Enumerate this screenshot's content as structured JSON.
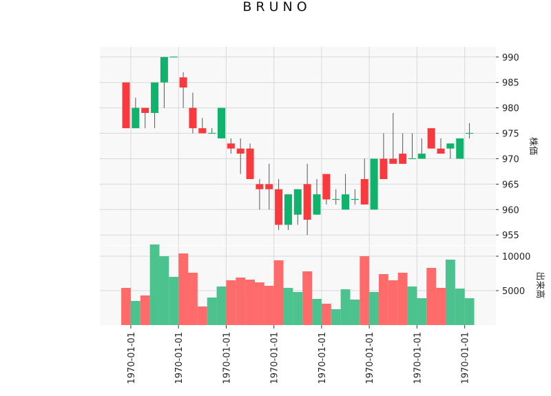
{
  "chart_data": {
    "type": "candlestick",
    "title": "BRUNO",
    "colors": {
      "up": "#0fb36b",
      "down": "#f83a3f",
      "volume_up": "#4cc28e",
      "volume_down": "#ff6b6b",
      "wick": "#555555",
      "panel_bg": "#f8f8f8",
      "grid": "#d8d8d8"
    },
    "price_axis": {
      "label": "株価",
      "ylim": [
        953,
        992
      ],
      "ticks": [
        955,
        960,
        965,
        970,
        975,
        980,
        985,
        990
      ],
      "tick_labels": [
        "955",
        "960",
        "965",
        "970",
        "975",
        "980",
        "985",
        "990"
      ]
    },
    "volume_axis": {
      "label": "出来高",
      "ylim": [
        0,
        11500
      ],
      "ticks": [
        5000,
        10000
      ],
      "tick_labels": [
        "5000",
        "10000"
      ]
    },
    "x_tick_labels": [
      "1970-01-01",
      "1970-01-01",
      "1970-01-01",
      "1970-01-01",
      "1970-01-01",
      "1970-01-01",
      "1970-01-01",
      "1970-01-01"
    ],
    "x_tick_positions": [
      0.5,
      5.5,
      10.5,
      15.5,
      20.5,
      25.5,
      30.5,
      35.5
    ],
    "grid": true,
    "candles": [
      {
        "open": 985,
        "high": 985,
        "low": 976,
        "close": 976,
        "volume": 5400
      },
      {
        "open": 976,
        "high": 982,
        "low": 976,
        "close": 980,
        "volume": 3500
      },
      {
        "open": 980,
        "high": 980,
        "low": 976,
        "close": 979,
        "volume": 4300
      },
      {
        "open": 979,
        "high": 985,
        "low": 976,
        "close": 985,
        "volume": 11700
      },
      {
        "open": 985,
        "high": 990,
        "low": 980,
        "close": 990,
        "volume": 10000
      },
      {
        "open": 990,
        "high": 990,
        "low": 990,
        "close": 990,
        "volume": 7000
      },
      {
        "open": 986,
        "high": 987,
        "low": 980,
        "close": 984,
        "volume": 10400
      },
      {
        "open": 980,
        "high": 983,
        "low": 975,
        "close": 976,
        "volume": 7600
      },
      {
        "open": 976,
        "high": 978,
        "low": 975,
        "close": 975,
        "volume": 2700
      },
      {
        "open": 975,
        "high": 976,
        "low": 975,
        "close": 975,
        "volume": 4000
      },
      {
        "open": 974,
        "high": 980,
        "low": 974,
        "close": 980,
        "volume": 5600
      },
      {
        "open": 973,
        "high": 974,
        "low": 971,
        "close": 972,
        "volume": 6500
      },
      {
        "open": 972,
        "high": 974,
        "low": 967,
        "close": 971,
        "volume": 6900
      },
      {
        "open": 972,
        "high": 973,
        "low": 966,
        "close": 966,
        "volume": 6600
      },
      {
        "open": 965,
        "high": 966,
        "low": 960,
        "close": 964,
        "volume": 6200
      },
      {
        "open": 965,
        "high": 969,
        "low": 960,
        "close": 964,
        "volume": 5700
      },
      {
        "open": 964,
        "high": 966,
        "low": 956,
        "close": 957,
        "volume": 9400
      },
      {
        "open": 957,
        "high": 963,
        "low": 956,
        "close": 963,
        "volume": 5400
      },
      {
        "open": 959,
        "high": 964,
        "low": 957,
        "close": 964,
        "volume": 4800
      },
      {
        "open": 965,
        "high": 969,
        "low": 955,
        "close": 958,
        "volume": 7800
      },
      {
        "open": 959,
        "high": 966,
        "low": 959,
        "close": 963,
        "volume": 3800
      },
      {
        "open": 967,
        "high": 967,
        "low": 961,
        "close": 962,
        "volume": 3100
      },
      {
        "open": 962,
        "high": 964,
        "low": 961,
        "close": 962,
        "volume": 2300
      },
      {
        "open": 960,
        "high": 967,
        "low": 960,
        "close": 963,
        "volume": 5200
      },
      {
        "open": 962,
        "high": 964,
        "low": 961,
        "close": 962,
        "volume": 3700
      },
      {
        "open": 966,
        "high": 970,
        "low": 961,
        "close": 961,
        "volume": 10000
      },
      {
        "open": 960,
        "high": 970,
        "low": 960,
        "close": 970,
        "volume": 4800
      },
      {
        "open": 970,
        "high": 975,
        "low": 966,
        "close": 966,
        "volume": 7400
      },
      {
        "open": 970,
        "high": 979,
        "low": 969,
        "close": 969,
        "volume": 6500
      },
      {
        "open": 971,
        "high": 975,
        "low": 969,
        "close": 969,
        "volume": 7600
      },
      {
        "open": 970,
        "high": 975,
        "low": 970,
        "close": 970,
        "volume": 5600
      },
      {
        "open": 970,
        "high": 974,
        "low": 970,
        "close": 971,
        "volume": 3900
      },
      {
        "open": 976,
        "high": 976,
        "low": 972,
        "close": 972,
        "volume": 8300
      },
      {
        "open": 972,
        "high": 974,
        "low": 971,
        "close": 971,
        "volume": 5400
      },
      {
        "open": 972,
        "high": 973,
        "low": 970,
        "close": 973,
        "volume": 9500
      },
      {
        "open": 970,
        "high": 974,
        "low": 970,
        "close": 974,
        "volume": 5300
      },
      {
        "open": 975,
        "high": 977,
        "low": 974,
        "close": 975,
        "volume": 3900
      }
    ]
  }
}
